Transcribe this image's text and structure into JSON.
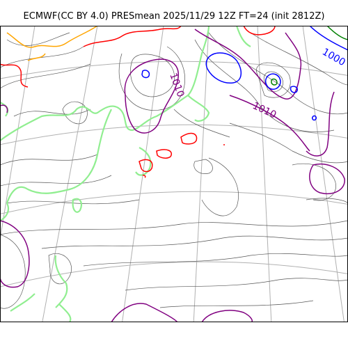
{
  "title": "ECMWF(CC BY 4.0) PRESmean 2025/11/29 12Z FT=24 (init 2812Z)",
  "colors": {
    "coast": "#90ee90",
    "grid": "#b0b0b0",
    "isobar_thin": "#555555",
    "isobar_1010": "#800080",
    "isobar_1000": "#0000ff",
    "isobar_1020": "#ff0000",
    "isobar_1030": "#ffa500",
    "isobar_990": "#008000"
  },
  "labels": {
    "l1000": "1000",
    "l1010a": "1010",
    "l1010b": "1010"
  }
}
